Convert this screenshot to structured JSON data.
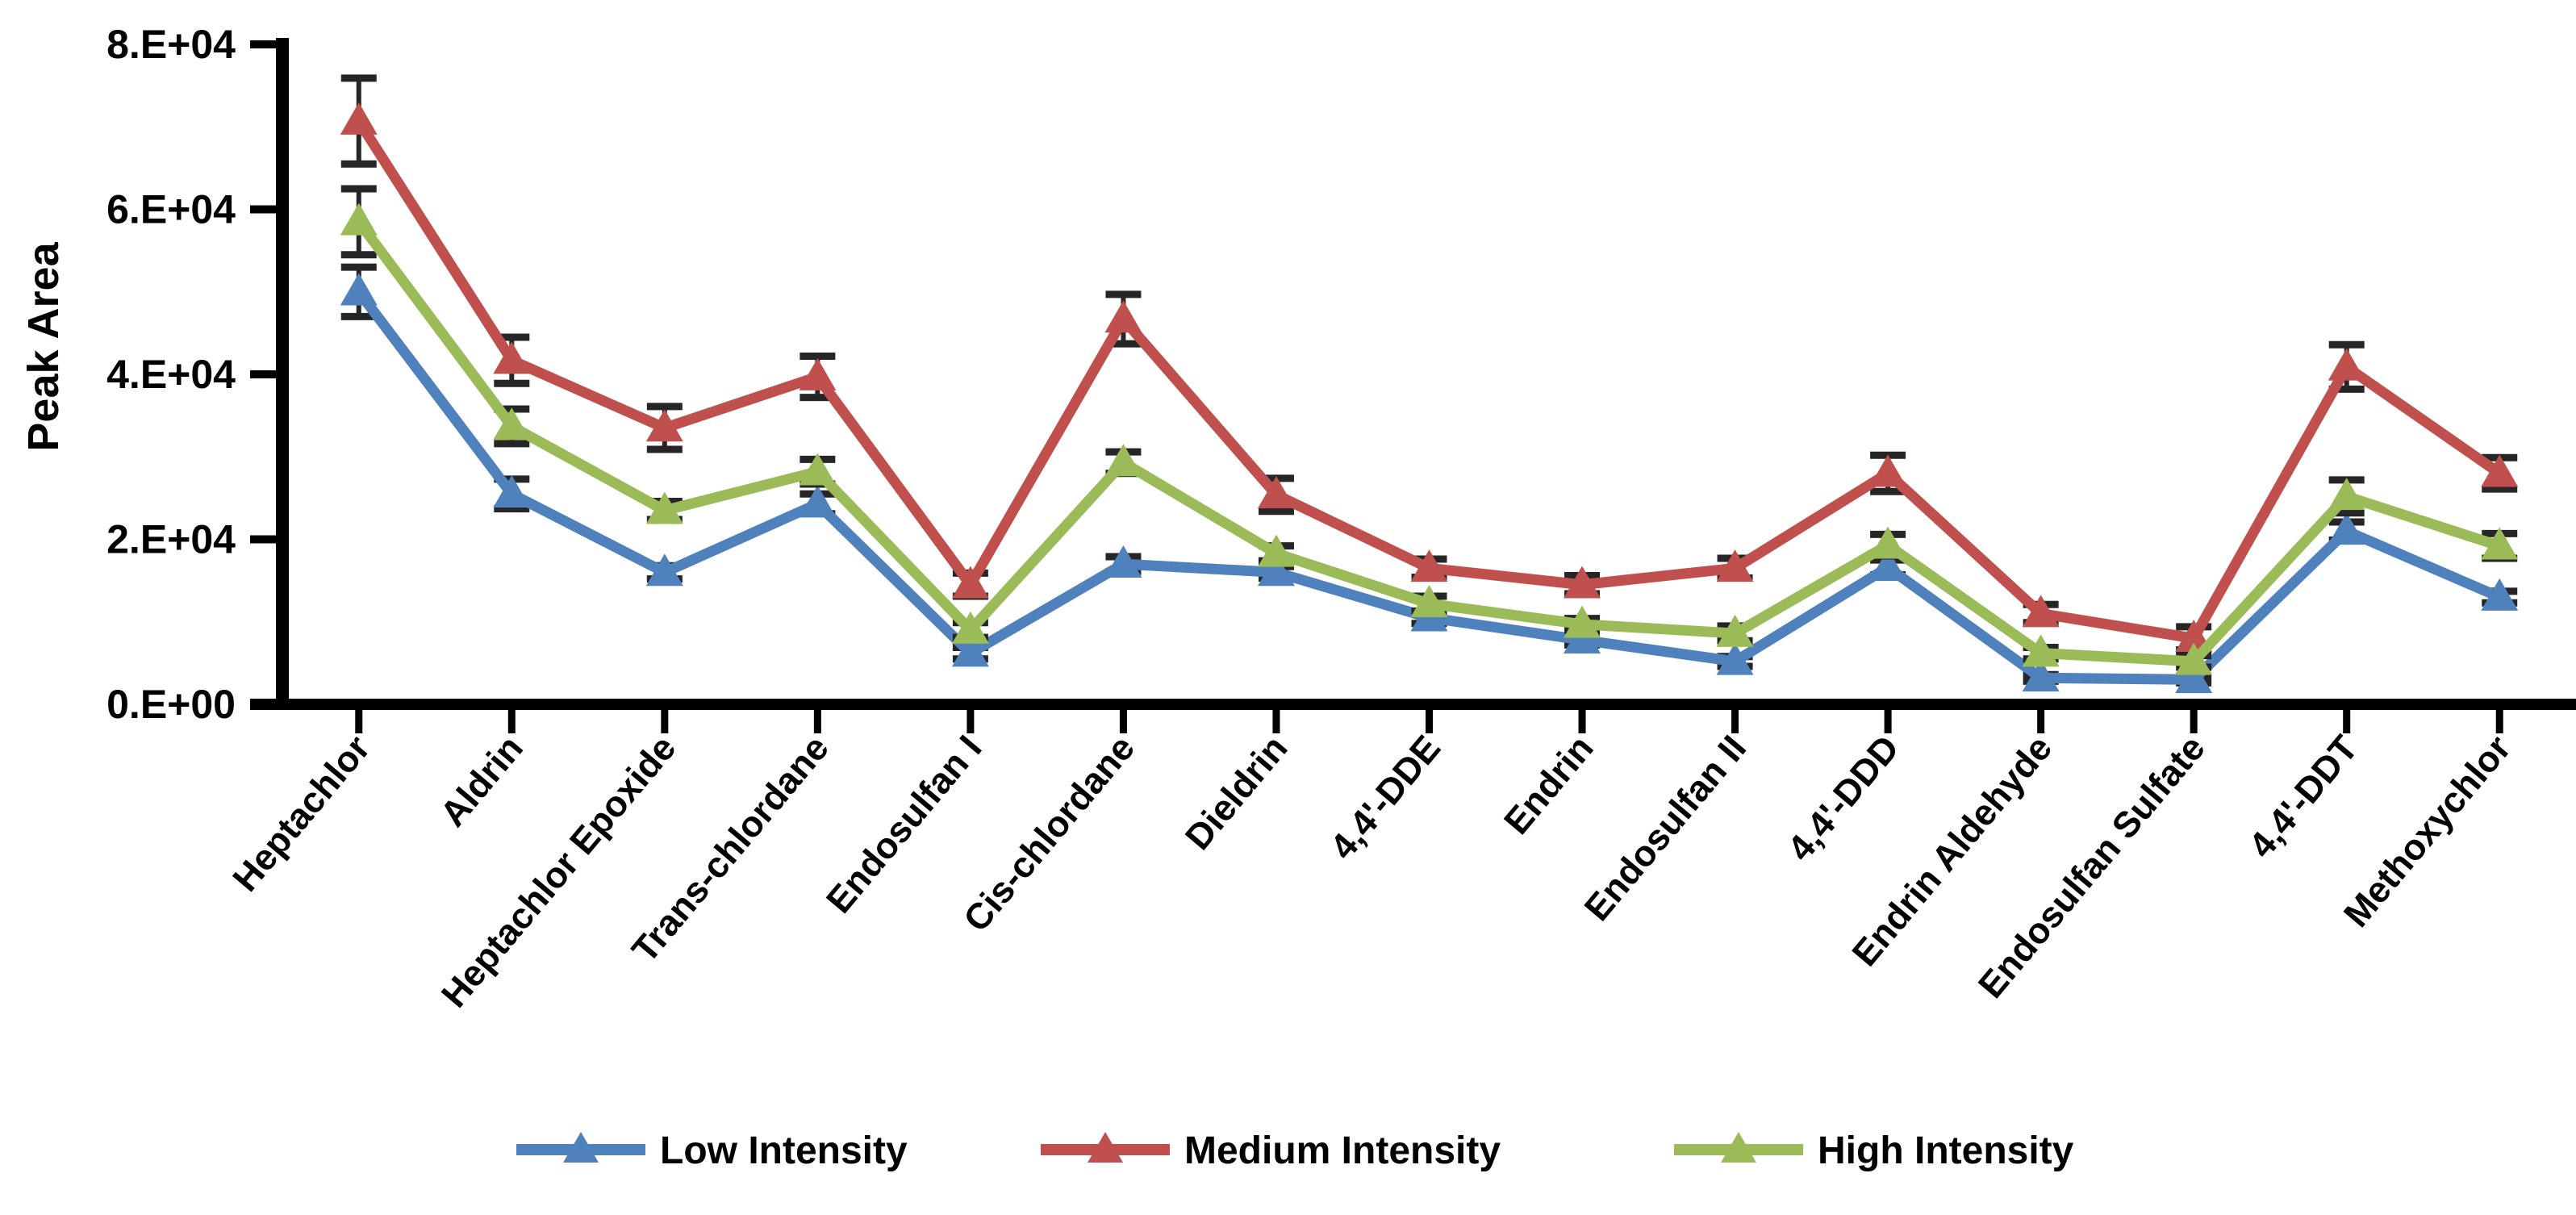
{
  "chart_data": {
    "type": "line",
    "title": "",
    "xlabel": "",
    "ylabel": "Peak Area",
    "ylim": [
      0,
      80000
    ],
    "ytick_values": [
      0,
      20000,
      40000,
      60000,
      80000
    ],
    "ytick_labels": [
      "0.E+00",
      "2.E+04",
      "4.E+04",
      "6.E+04",
      "8.E+04"
    ],
    "grid": false,
    "legend_position": "bottom",
    "axis_color": "#000000",
    "error_bar_color": "#262626",
    "categories": [
      "Heptachlor",
      "Aldrin",
      "Heptachlor Epoxide",
      "Trans-chlordane",
      "Endosulfan I",
      "Cis-chlordane",
      "Dieldrin",
      "4,4'-DDE",
      "Endrin",
      "Endosulfan II",
      "4,4'-DDD",
      "Endrin Aldehyde",
      "Endosulfan Sulfate",
      "4,4'-DDT",
      "Methoxychlor"
    ],
    "series": [
      {
        "name": "Low Intensity",
        "color": "#4F81BD",
        "marker": "triangle",
        "values": [
          50000,
          25500,
          16000,
          24300,
          6200,
          17000,
          16000,
          10500,
          7800,
          5200,
          16600,
          3200,
          3000,
          21000,
          13000
        ],
        "errors": [
          3000,
          1800,
          800,
          1200,
          700,
          900,
          700,
          700,
          600,
          600,
          900,
          400,
          400,
          1100,
          700
        ]
      },
      {
        "name": "Medium Intensity",
        "color": "#C0504D",
        "marker": "triangle",
        "values": [
          70700,
          41700,
          33500,
          39700,
          14500,
          46700,
          25400,
          16500,
          14500,
          16500,
          28000,
          11000,
          8000,
          40900,
          28000
        ],
        "errors": [
          5200,
          2800,
          2600,
          2500,
          1400,
          3000,
          2000,
          1100,
          1100,
          1200,
          2200,
          1100,
          1400,
          2700,
          1900
        ]
      },
      {
        "name": "High Intensity",
        "color": "#9BBB59",
        "marker": "triangle",
        "values": [
          58500,
          33700,
          23500,
          28200,
          9000,
          29300,
          18300,
          12200,
          9700,
          8600,
          19300,
          6200,
          5200,
          25200,
          19200
        ],
        "errors": [
          4000,
          2100,
          1100,
          1500,
          900,
          1300,
          900,
          900,
          700,
          900,
          1300,
          700,
          700,
          2000,
          1500
        ]
      }
    ]
  }
}
